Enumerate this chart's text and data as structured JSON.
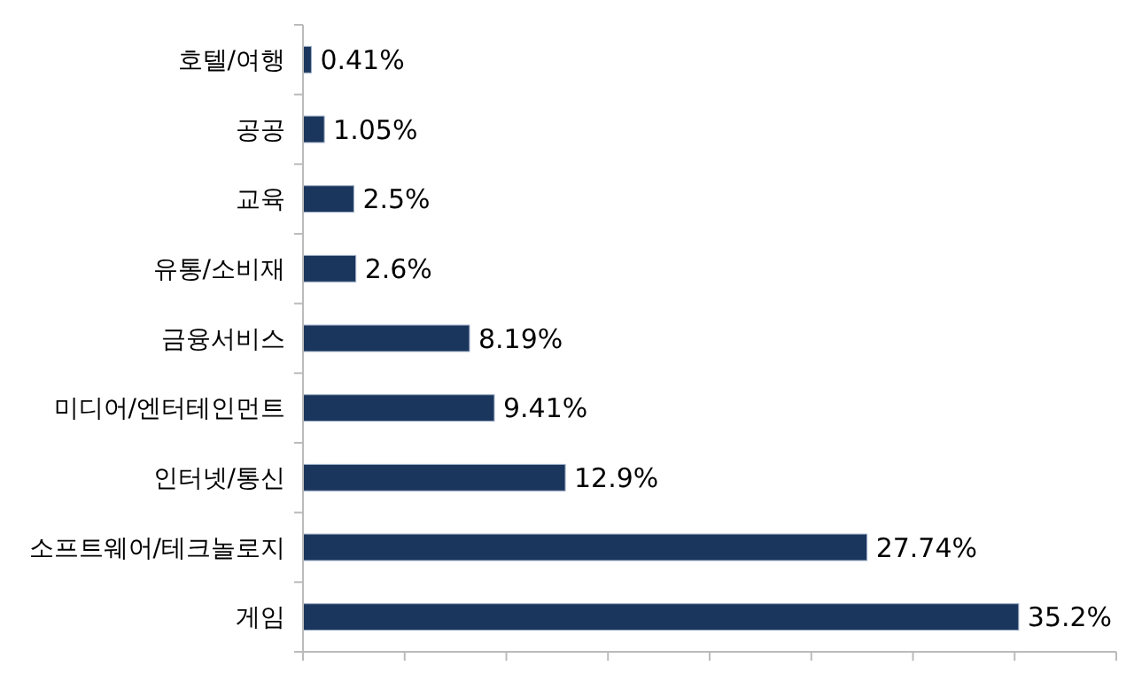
{
  "chart_data": {
    "type": "bar",
    "orientation": "horizontal",
    "categories": [
      "호텔/여행",
      "공공",
      "교육",
      "유통/소비재",
      "금융서비스",
      "미디어/엔터테인먼트",
      "인터넷/통신",
      "소프트웨어/테크놀로지",
      "게임"
    ],
    "values": [
      0.41,
      1.05,
      2.5,
      2.6,
      8.19,
      9.41,
      12.9,
      27.74,
      35.2
    ],
    "value_labels": [
      "0.41%",
      "1.05%",
      "2.5%",
      "2.6%",
      "8.19%",
      "9.41%",
      "12.9%",
      "27.74%",
      "35.2%"
    ],
    "color": "#1b365d",
    "xlim": [
      0,
      40
    ],
    "xticks": [
      {
        "value": 0,
        "label": null
      },
      {
        "value": 5,
        "label": null
      },
      {
        "value": 10,
        "label": null
      },
      {
        "value": 15,
        "label": null
      },
      {
        "value": 20,
        "label": null
      },
      {
        "value": 25,
        "label": null
      },
      {
        "value": 30,
        "label": null
      },
      {
        "value": 35,
        "label": null
      },
      {
        "value": 40,
        "label": null
      }
    ],
    "tick_labels": "y"
  }
}
